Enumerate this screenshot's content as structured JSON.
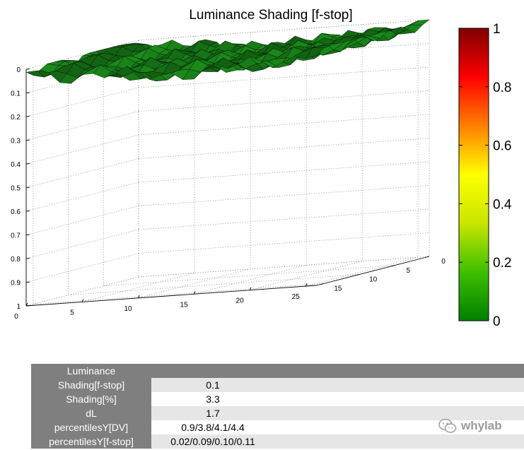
{
  "chart_data": {
    "type": "surface3d",
    "title": "Luminance Shading [f-stop]",
    "x_ticks": [
      "0",
      "5",
      "10",
      "15",
      "20",
      "25"
    ],
    "y_ticks": [
      "0",
      "5",
      "10",
      "15"
    ],
    "z_ticks": [
      "0",
      "0.1",
      "0.2",
      "0.3",
      "0.4",
      "0.5",
      "0.6",
      "0.7",
      "0.8",
      "0.9",
      "1"
    ],
    "xlim": [
      0,
      26
    ],
    "ylim": [
      0,
      16
    ],
    "zlim": [
      0,
      1
    ],
    "z_direction": "reversed",
    "grid": true,
    "surface_color": "#1a8a1a",
    "surface_edge_color": "#000000",
    "surface_value_range": [
      0.0,
      0.12
    ],
    "colorbar": {
      "ticks": [
        "0",
        "0.2",
        "0.4",
        "0.6",
        "0.8",
        "1"
      ],
      "range": [
        0,
        1
      ],
      "colors": [
        "#007f00",
        "#3fbf00",
        "#c8e600",
        "#ffff00",
        "#ff7f00",
        "#ff0000",
        "#7f0000"
      ]
    }
  },
  "stats": {
    "header_label": "Luminance",
    "rows": [
      {
        "label": "Shading[f-stop]",
        "value": "0.1"
      },
      {
        "label": "Shading[%]",
        "value": "3.3"
      },
      {
        "label": "dL",
        "value": "1.7"
      },
      {
        "label": "percentilesY[DV]",
        "value": "0.9/3.8/4.1/4.4"
      },
      {
        "label": "percentilesY[f-stop]",
        "value": "0.02/0.09/0.10/0.11"
      }
    ]
  },
  "watermark": {
    "text": "whylab",
    "icon": "wechat-icon"
  }
}
